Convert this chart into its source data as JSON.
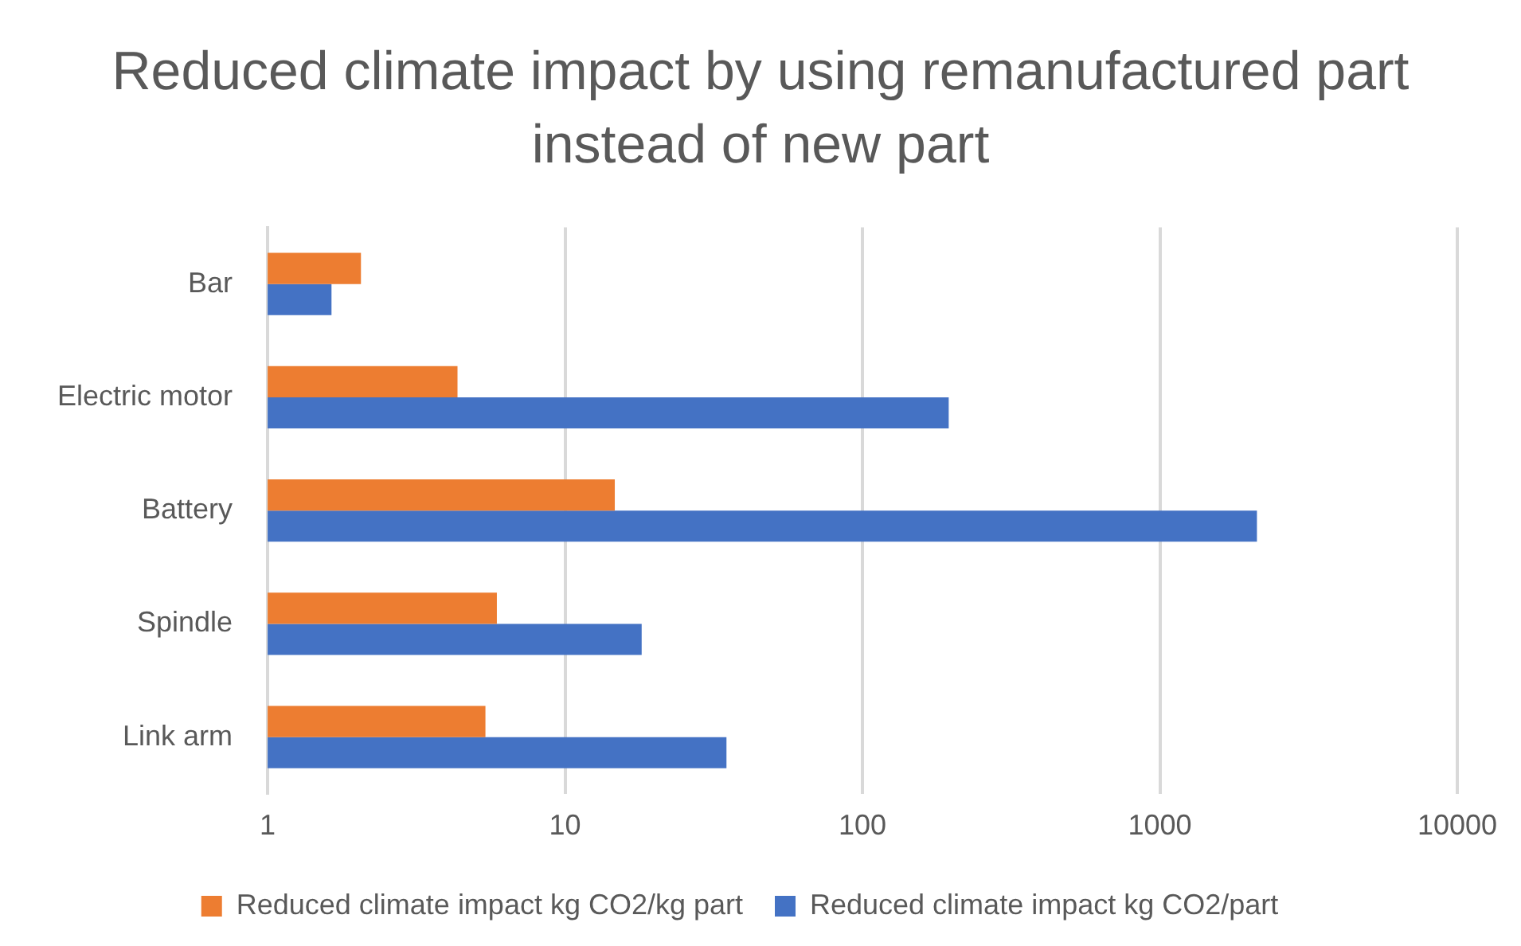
{
  "chart_data": {
    "type": "bar",
    "orientation": "horizontal",
    "title": "Reduced climate impact by using remanufactured part instead of new part",
    "categories": [
      "Bar",
      "Electric motor",
      "Battery",
      "Spindle",
      "Link arm"
    ],
    "series": [
      {
        "name": "Reduced climate impact kg CO2/kg part",
        "color": "#ed7d31",
        "values": [
          2.06,
          4.35,
          14.7,
          5.9,
          5.4
        ]
      },
      {
        "name": "Reduced climate impact kg CO2/part",
        "color": "#4472c4",
        "values": [
          1.64,
          195,
          2120,
          18.1,
          34.9
        ]
      }
    ],
    "log": "x",
    "xlim": [
      1,
      10000
    ],
    "xticks": [
      1,
      10,
      100,
      1000,
      10000
    ],
    "grid": "x",
    "legend": "bottom"
  }
}
